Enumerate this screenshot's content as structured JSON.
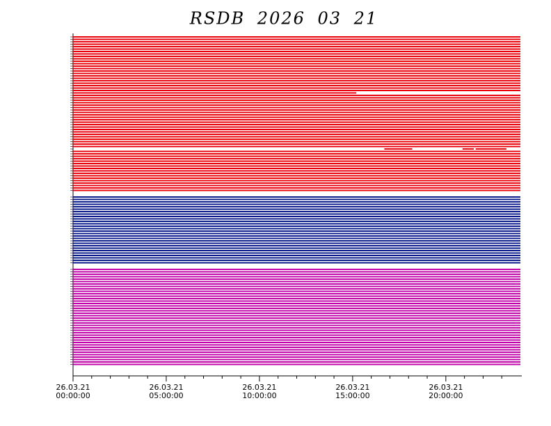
{
  "chart_data": {
    "type": "timeline",
    "title": "RSDB 2026 03 21",
    "xlim": [
      0,
      24
    ],
    "xticks": [
      {
        "value": 0,
        "label": "26.03.21 00:00:00"
      },
      {
        "value": 5,
        "label": "26.03.21 05:00:00"
      },
      {
        "value": 10,
        "label": "26.03.21 10:00:00"
      },
      {
        "value": 15,
        "label": "26.03.21 15:00:00"
      },
      {
        "value": 20,
        "label": "26.03.21 20:00:00"
      }
    ],
    "xminorticks": [
      1,
      2,
      3,
      4,
      6,
      7,
      8,
      9,
      11,
      12,
      13,
      14,
      16,
      17,
      18,
      19,
      21,
      22,
      23
    ],
    "series": [
      {
        "color": "#e8000b",
        "rows": [
          [
            [
              0,
              24
            ]
          ],
          [
            [
              0,
              24
            ]
          ],
          [
            [
              0,
              24
            ]
          ],
          [
            [
              0,
              24
            ]
          ],
          [
            [
              0,
              24
            ]
          ],
          [
            [
              0,
              24
            ]
          ],
          [
            [
              0,
              24
            ]
          ],
          [
            [
              0,
              24
            ]
          ],
          [
            [
              0,
              24
            ]
          ],
          [
            [
              0,
              24
            ]
          ],
          [
            [
              0,
              24
            ]
          ],
          [
            [
              0,
              24
            ]
          ],
          [
            [
              0,
              24
            ]
          ],
          [
            [
              0,
              24
            ]
          ],
          [
            [
              0,
              24
            ]
          ],
          [
            [
              0,
              24
            ]
          ],
          [
            [
              0,
              24
            ]
          ],
          [
            [
              0,
              24
            ]
          ],
          [
            [
              0,
              24
            ]
          ],
          [
            [
              0,
              24
            ]
          ],
          [
            [
              0,
              24
            ]
          ],
          [
            [
              0,
              24
            ]
          ],
          [
            [
              0,
              24
            ]
          ],
          [
            [
              0,
              15.2
            ]
          ],
          [
            [
              0,
              24
            ]
          ],
          [
            [
              0,
              24
            ]
          ],
          [
            [
              0,
              24
            ]
          ],
          [
            [
              0,
              24
            ]
          ],
          [
            [
              0,
              24
            ]
          ],
          [
            [
              0,
              24
            ]
          ],
          [
            [
              0,
              24
            ]
          ],
          [
            [
              0,
              24
            ]
          ],
          [
            [
              0,
              24
            ]
          ],
          [
            [
              0,
              24
            ]
          ],
          [
            [
              0,
              24
            ]
          ],
          [
            [
              0,
              24
            ]
          ],
          [
            [
              0,
              24
            ]
          ],
          [
            [
              0,
              24
            ]
          ],
          [
            [
              0,
              24
            ]
          ],
          [
            [
              0,
              24
            ]
          ],
          [
            [
              0,
              24
            ]
          ],
          [
            [
              0,
              24
            ]
          ],
          [
            [
              0,
              24
            ]
          ],
          [
            [
              0,
              24
            ]
          ],
          [
            [
              0,
              24
            ]
          ],
          [
            [
              0,
              24
            ]
          ],
          [
            [
              16.7,
              18.2
            ],
            [
              20.9,
              21.5
            ],
            [
              21.6,
              23.25
            ]
          ],
          [
            [
              0,
              24
            ]
          ],
          [
            [
              0,
              24
            ]
          ],
          [
            [
              0,
              24
            ]
          ],
          [
            [
              0,
              24
            ]
          ],
          [
            [
              0,
              24
            ]
          ],
          [
            [
              0,
              24
            ]
          ],
          [
            [
              0,
              24
            ]
          ],
          [
            [
              0,
              24
            ]
          ],
          [
            [
              0,
              24
            ]
          ],
          [
            [
              0,
              24
            ]
          ],
          [
            [
              0,
              24
            ]
          ],
          [
            [
              0,
              24
            ]
          ],
          [
            [
              0,
              24
            ]
          ],
          [
            [
              0,
              24
            ]
          ],
          [
            [
              0,
              24
            ]
          ],
          [
            [
              0,
              24
            ]
          ],
          [
            [
              0,
              24
            ]
          ]
        ]
      },
      {
        "color": "#0a1a8c",
        "rows": [
          [
            [
              0,
              24
            ]
          ],
          [
            [
              0,
              24
            ]
          ],
          [
            [
              0,
              24
            ]
          ],
          [
            [
              0,
              24
            ]
          ],
          [
            [
              0,
              24
            ]
          ],
          [
            [
              0,
              24
            ]
          ],
          [
            [
              0,
              24
            ]
          ],
          [
            [
              0,
              24
            ]
          ],
          [
            [
              0,
              24
            ]
          ],
          [
            [
              0,
              24
            ]
          ],
          [
            [
              0,
              24
            ]
          ],
          [
            [
              0,
              24
            ]
          ],
          [
            [
              0,
              24
            ]
          ],
          [
            [
              0,
              24
            ]
          ],
          [
            [
              0,
              24
            ]
          ],
          [
            [
              0,
              24
            ]
          ],
          [
            [
              0,
              24
            ]
          ],
          [
            [
              0,
              24
            ]
          ],
          [
            [
              0,
              24
            ]
          ],
          [
            [
              0,
              24
            ]
          ],
          [
            [
              0,
              24
            ]
          ],
          [
            [
              0,
              24
            ]
          ],
          [
            [
              0,
              24
            ]
          ],
          [
            [
              0,
              24
            ]
          ],
          [
            [
              0,
              24
            ]
          ],
          [
            [
              0,
              24
            ]
          ],
          [
            [
              0,
              24
            ]
          ],
          [
            [
              0,
              24
            ]
          ]
        ]
      },
      {
        "color": "#c000a8",
        "rows": [
          [
            [
              0,
              24
            ]
          ],
          [
            [
              0,
              24
            ]
          ],
          [
            [
              0,
              24
            ]
          ],
          [
            [
              0,
              24
            ]
          ],
          [
            [
              0,
              24
            ]
          ],
          [
            [
              0,
              24
            ]
          ],
          [
            [
              0,
              24
            ]
          ],
          [
            [
              0,
              24
            ]
          ],
          [
            [
              0,
              24
            ]
          ],
          [
            [
              0,
              24
            ]
          ],
          [
            [
              0,
              24
            ]
          ],
          [
            [
              0,
              24
            ]
          ],
          [
            [
              0,
              24
            ]
          ],
          [
            [
              0,
              24
            ]
          ],
          [
            [
              0,
              24
            ]
          ],
          [
            [
              0,
              24
            ]
          ],
          [
            [
              0,
              24
            ]
          ],
          [
            [
              0,
              24
            ]
          ],
          [
            [
              0,
              24
            ]
          ],
          [
            [
              0,
              24
            ]
          ],
          [
            [
              0,
              24
            ]
          ],
          [
            [
              0,
              24
            ]
          ],
          [
            [
              0,
              24
            ]
          ],
          [
            [
              0,
              24
            ]
          ],
          [
            [
              0,
              24
            ]
          ],
          [
            [
              0,
              24
            ]
          ],
          [
            [
              0,
              24
            ]
          ],
          [
            [
              0,
              24
            ]
          ],
          [
            [
              0,
              24
            ]
          ],
          [
            [
              0,
              24
            ]
          ],
          [
            [
              0,
              24
            ]
          ],
          [
            [
              0,
              24
            ]
          ],
          [
            [
              0,
              24
            ]
          ],
          [
            [
              0,
              24
            ]
          ],
          [
            [
              0,
              24
            ]
          ],
          [
            [
              0,
              24
            ]
          ],
          [
            [
              0,
              24
            ]
          ],
          [
            [
              0,
              24
            ]
          ],
          [
            [
              0,
              24
            ]
          ],
          [
            [
              0,
              24
            ]
          ]
        ]
      }
    ]
  }
}
